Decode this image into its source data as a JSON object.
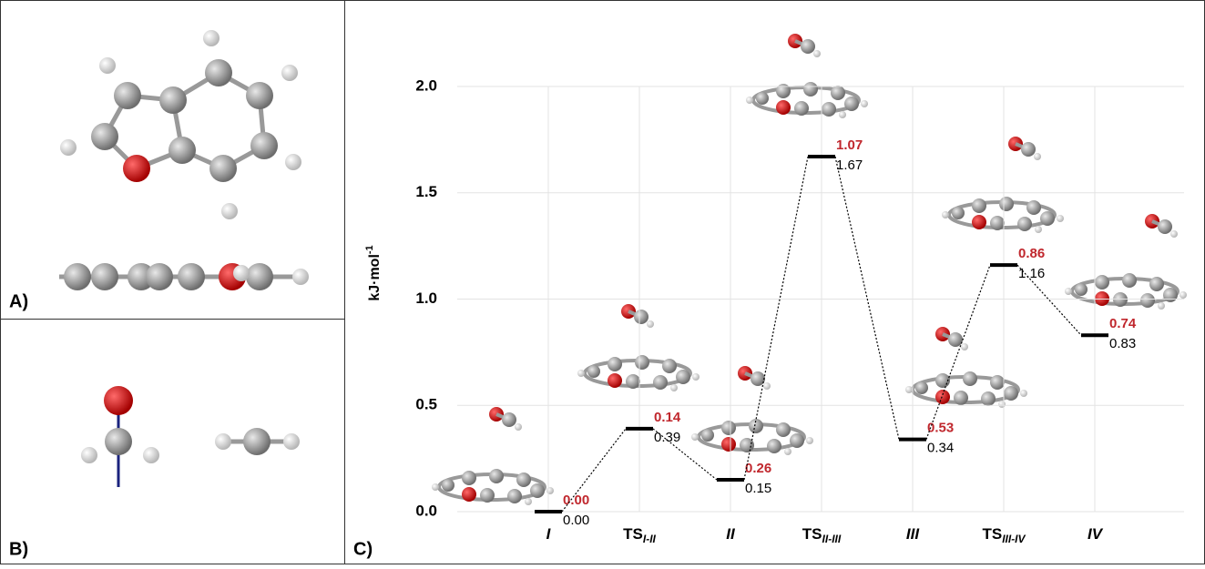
{
  "panels": {
    "a": "A)",
    "b": "B)",
    "c": "C)"
  },
  "chart_data": {
    "type": "energy_levels",
    "y_label": {
      "text": "kJ·mol",
      "sup": "-1"
    },
    "categories": [
      {
        "text": "I"
      },
      {
        "text": "TS",
        "sub": "I-II"
      },
      {
        "text": "II"
      },
      {
        "text": "TS",
        "sub": "II-III"
      },
      {
        "text": "III"
      },
      {
        "text": "TS",
        "sub": "III-IV"
      },
      {
        "text": "IV"
      }
    ],
    "values": [
      0,
      0.39,
      0.15,
      1.67,
      0.34,
      1.16,
      0.83
    ],
    "value_labels": [
      "0.00",
      "0.39",
      "0.15",
      "1.67",
      "0.34",
      "1.16",
      "0.83"
    ],
    "annotations": [
      "0.00",
      "0.14",
      "0.26",
      "1.07",
      "0.53",
      "0.86",
      "0.74"
    ],
    "color": "#000000",
    "annotation_color": "#c0272d",
    "ylim": [
      0,
      2.0
    ],
    "yticks": [
      {
        "value": 0,
        "label": "0.0"
      },
      {
        "value": 0.5,
        "label": "0.5"
      },
      {
        "value": 1,
        "label": "1.0"
      },
      {
        "value": 1.5,
        "label": "1.5"
      },
      {
        "value": 2,
        "label": "2.0"
      }
    ],
    "grid": true
  }
}
